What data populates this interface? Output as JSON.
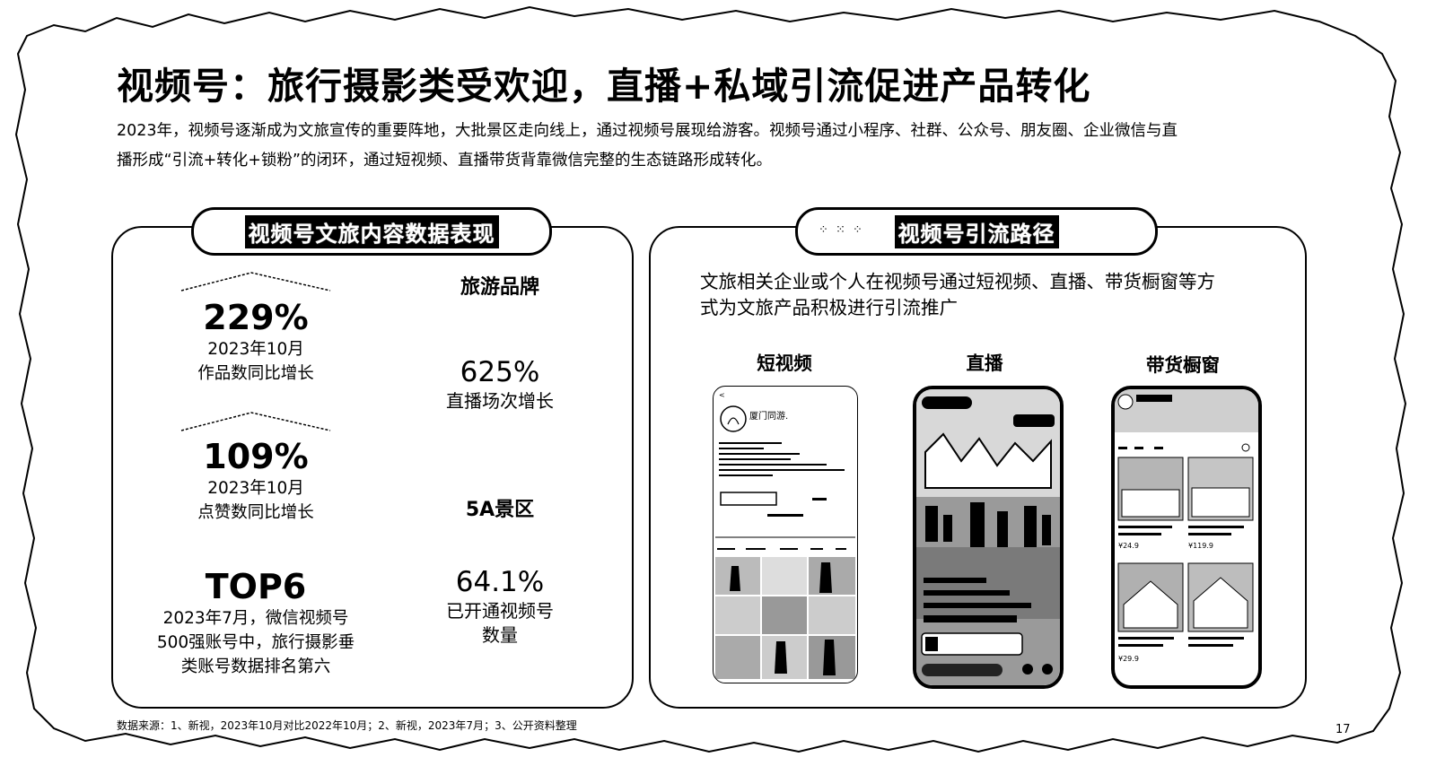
{
  "header": {
    "title": "视频号：旅行摄影类受欢迎，直播+私域引流促进产品转化",
    "intro_line1": "2023年，视频号逐渐成为文旅宣传的重要阵地，大批景区走向线上，通过视频号展现给游客。视频号通过小程序、社群、公众号、朋友圈、企业微信与直",
    "intro_line2": "播形成“引流+转化+锁粉”的闭环，通过短视频、直播带货背靠微信完整的生态链路形成转化。"
  },
  "left_panel": {
    "heading": "视频号文旅内容数据表现",
    "stats": [
      {
        "value": "229%",
        "caption_line1": "2023年10月",
        "caption_line2": "作品数同比增长"
      },
      {
        "value": "109%",
        "caption_line1": "2023年10月",
        "caption_line2": "点赞数同比增长"
      },
      {
        "value": "TOP6",
        "caption_line1": "2023年7月，微信视频号",
        "caption_line2": "500强账号中，旅行摄影垂",
        "caption_line3": "类账号数据排名第六"
      }
    ],
    "brand_title": "旅游品牌",
    "brand_value": "625%",
    "brand_caption": "直播场次增长",
    "scenic_title": "5A景区",
    "scenic_value": "64.1%",
    "scenic_caption_line1": "已开通视频号",
    "scenic_caption_line2": "数量"
  },
  "right_panel": {
    "heading": "视频号引流路径",
    "intro_line1": "文旅相关企业或个人在视频号通过短视频、直播、带货橱窗等方",
    "intro_line2": "式为文旅产品积极进行引流推广",
    "phones": [
      {
        "label": "短视频",
        "profile_name": "厦门同游."
      },
      {
        "label": "直播"
      },
      {
        "label": "带货橱窗",
        "price_1": "¥24.9",
        "price_2": "¥119.9",
        "price_3": "¥29.9"
      }
    ]
  },
  "footer": {
    "source": "数据来源：1、新视，2023年10月对比2022年10月；2、新视，2023年7月；3、公开资料整理",
    "page_number": "17"
  }
}
